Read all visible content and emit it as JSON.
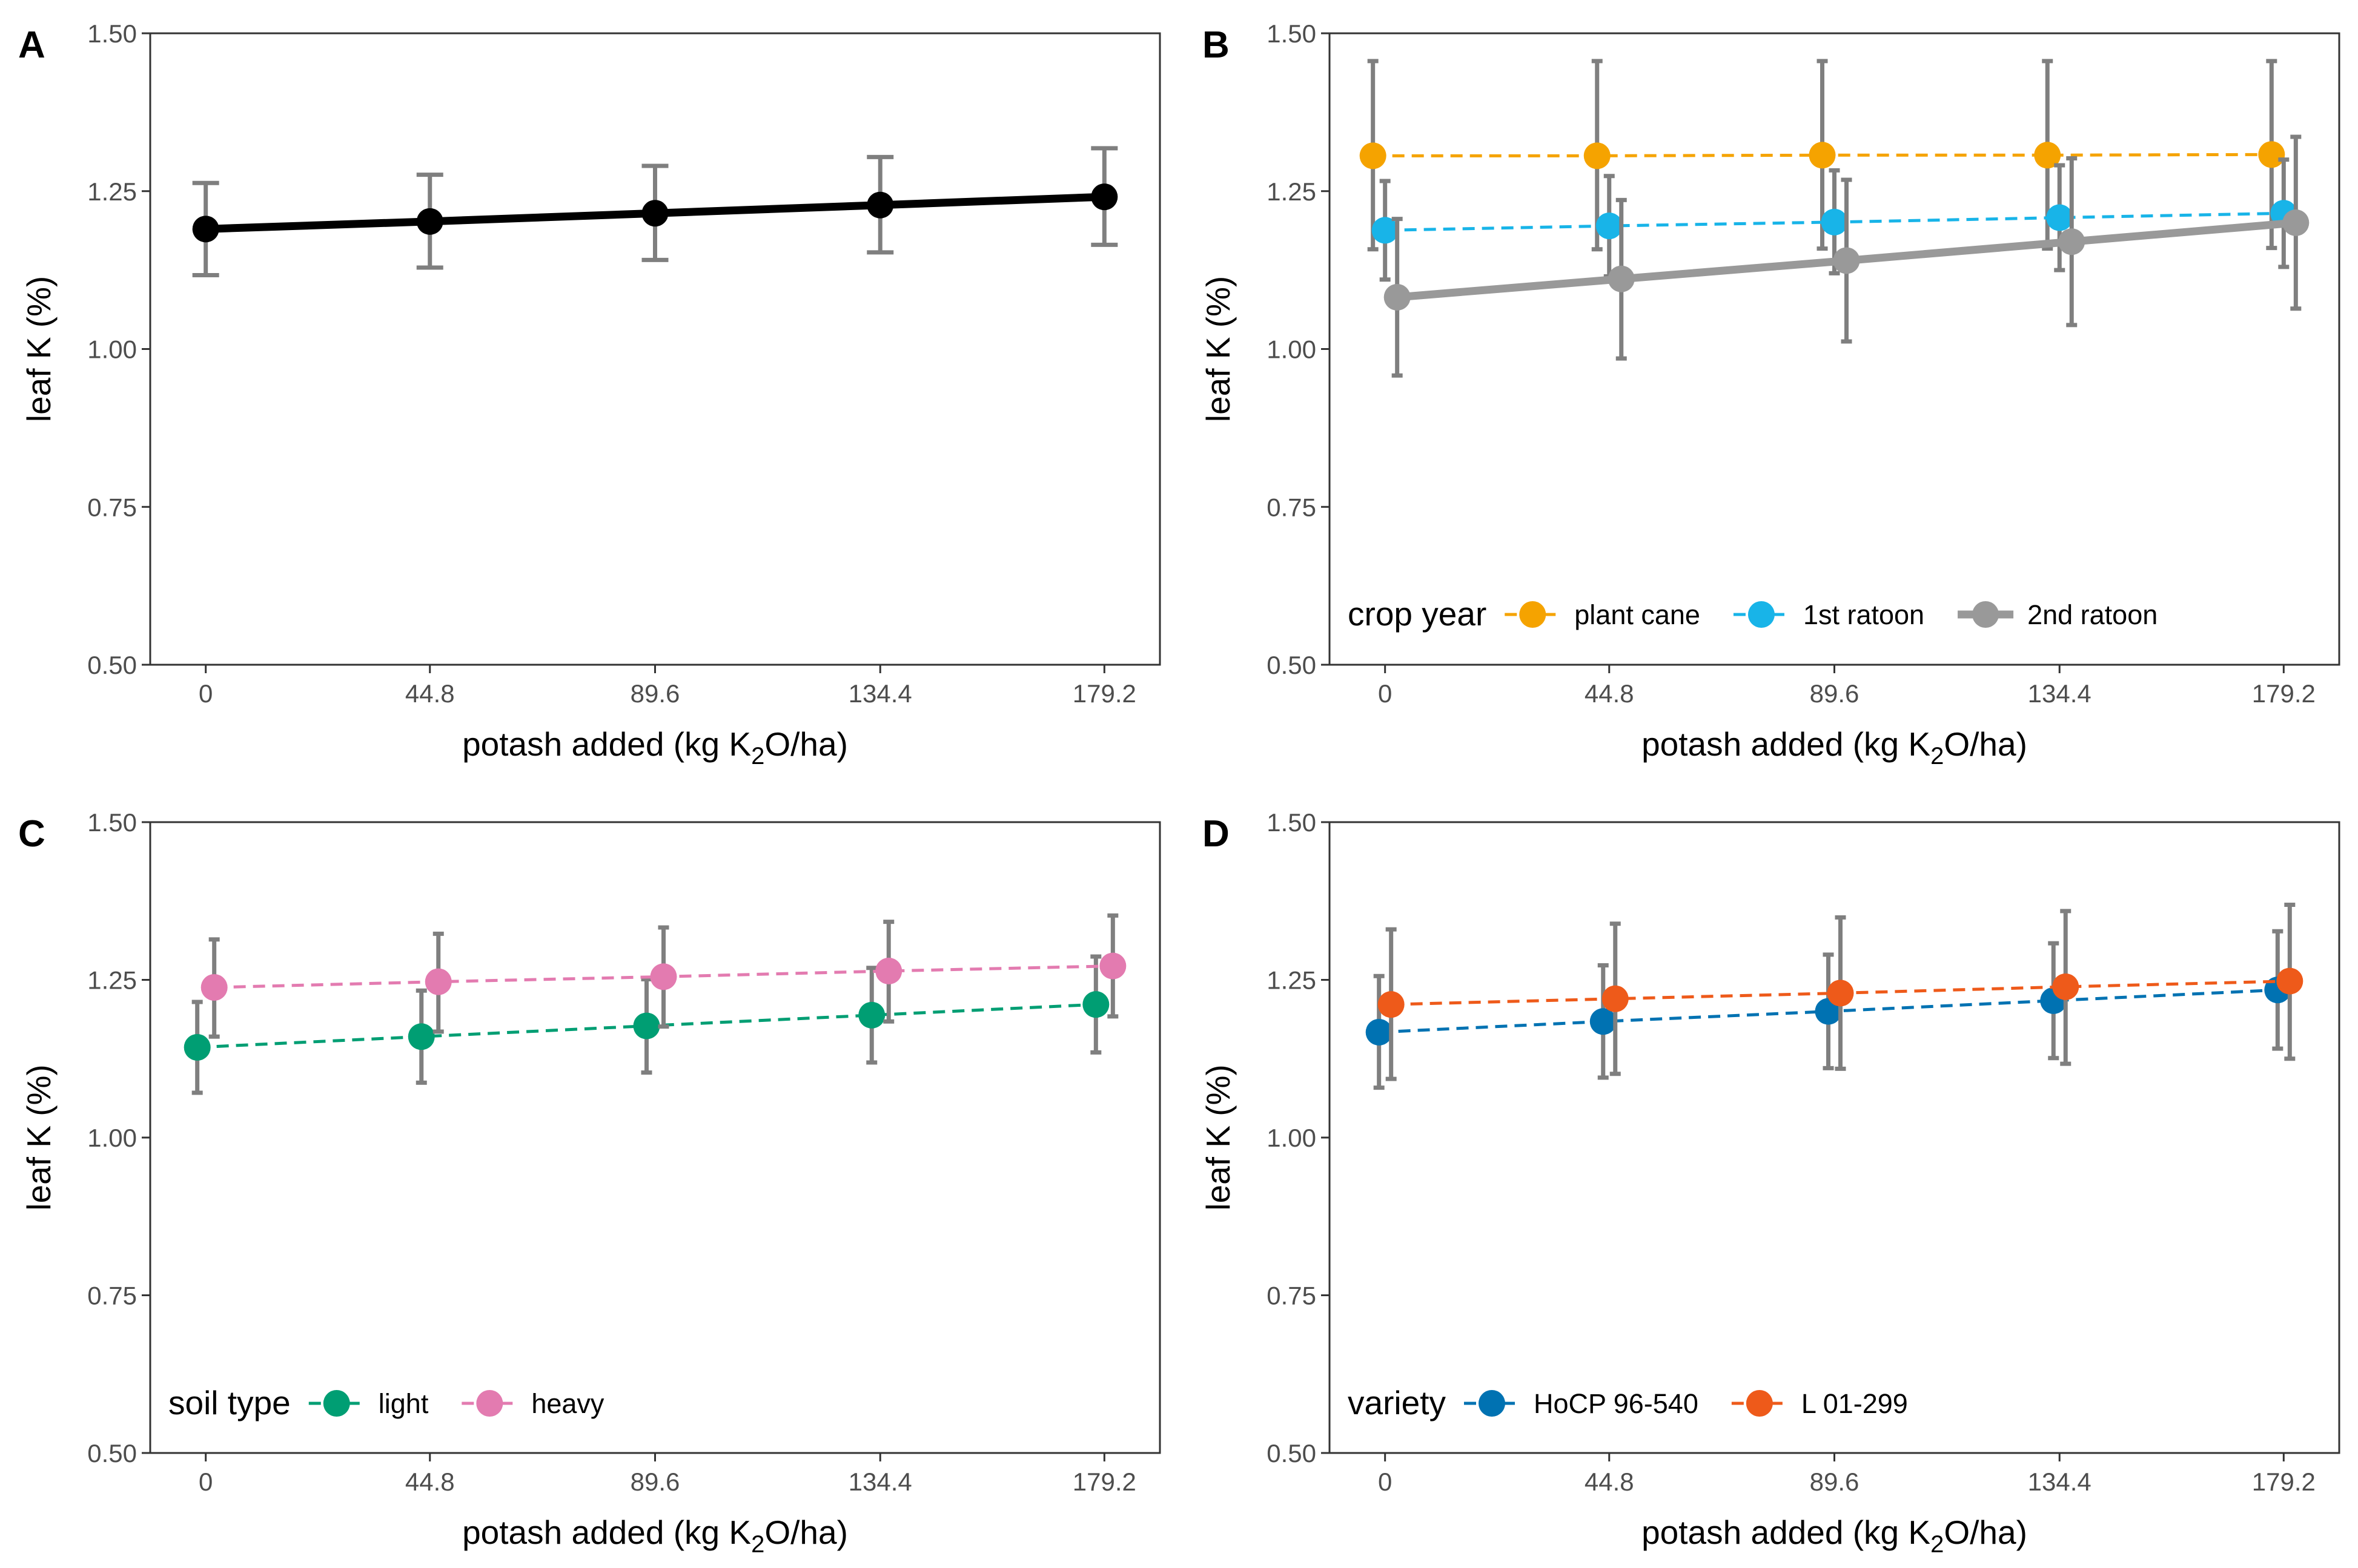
{
  "chart_data": [
    {
      "panel": "A",
      "type": "line",
      "xlabel_pre": "potash added (kg K",
      "xlabel_sub": "2",
      "xlabel_post": "O/ha)",
      "ylabel": "leaf K (%)",
      "categories": [
        "0",
        "44.8",
        "89.6",
        "134.4",
        "179.2"
      ],
      "yticks": [
        "0.50",
        "0.75",
        "1.00",
        "1.25",
        "1.50"
      ],
      "ylim": [
        0.5,
        1.5
      ],
      "legend_title": "",
      "series": [
        {
          "name": "",
          "color": "#000000",
          "dashed": false,
          "thick": true,
          "values": [
            1.19,
            1.202,
            1.215,
            1.228,
            1.241
          ],
          "lower": [
            1.117,
            1.129,
            1.141,
            1.153,
            1.165
          ],
          "upper": [
            1.263,
            1.276,
            1.29,
            1.304,
            1.318
          ]
        }
      ]
    },
    {
      "panel": "B",
      "type": "line",
      "xlabel_pre": "potash added (kg K",
      "xlabel_sub": "2",
      "xlabel_post": "O/ha)",
      "ylabel": "leaf K (%)",
      "categories": [
        "0",
        "44.8",
        "89.6",
        "134.4",
        "179.2"
      ],
      "yticks": [
        "0.50",
        "0.75",
        "1.00",
        "1.25",
        "1.50"
      ],
      "ylim": [
        0.5,
        1.5
      ],
      "legend_title": "crop year",
      "series": [
        {
          "name": "plant cane",
          "color": "#F5A300",
          "dashed": true,
          "thick": false,
          "values": [
            1.306,
            1.306,
            1.307,
            1.307,
            1.308
          ],
          "lower": [
            1.158,
            1.158,
            1.159,
            1.159,
            1.16
          ],
          "upper": [
            1.456,
            1.456,
            1.456,
            1.456,
            1.456
          ]
        },
        {
          "name": "1st ratoon",
          "color": "#18B4E8",
          "dashed": true,
          "thick": false,
          "values": [
            1.188,
            1.195,
            1.201,
            1.208,
            1.215
          ],
          "lower": [
            1.11,
            1.115,
            1.12,
            1.125,
            1.13
          ],
          "upper": [
            1.266,
            1.274,
            1.283,
            1.291,
            1.3
          ]
        },
        {
          "name": "2nd ratoon",
          "color": "#999999",
          "dashed": false,
          "thick": true,
          "values": [
            1.082,
            1.111,
            1.14,
            1.17,
            1.2
          ],
          "lower": [
            0.958,
            0.985,
            1.012,
            1.038,
            1.064
          ],
          "upper": [
            1.206,
            1.236,
            1.268,
            1.302,
            1.336
          ]
        }
      ]
    },
    {
      "panel": "C",
      "type": "line",
      "xlabel_pre": "potash added (kg K",
      "xlabel_sub": "2",
      "xlabel_post": "O/ha)",
      "ylabel": "leaf K (%)",
      "categories": [
        "0",
        "44.8",
        "89.6",
        "134.4",
        "179.2"
      ],
      "yticks": [
        "0.50",
        "0.75",
        "1.00",
        "1.25",
        "1.50"
      ],
      "ylim": [
        0.5,
        1.5
      ],
      "legend_title": "soil type",
      "series": [
        {
          "name": "light",
          "color": "#009E73",
          "dashed": true,
          "thick": false,
          "values": [
            1.143,
            1.16,
            1.177,
            1.194,
            1.211
          ],
          "lower": [
            1.071,
            1.087,
            1.103,
            1.119,
            1.135
          ],
          "upper": [
            1.215,
            1.233,
            1.251,
            1.269,
            1.287
          ]
        },
        {
          "name": "heavy",
          "color": "#E37BB0",
          "dashed": true,
          "thick": false,
          "values": [
            1.238,
            1.247,
            1.255,
            1.264,
            1.272
          ],
          "lower": [
            1.16,
            1.168,
            1.176,
            1.184,
            1.192
          ],
          "upper": [
            1.314,
            1.323,
            1.333,
            1.342,
            1.352
          ]
        }
      ]
    },
    {
      "panel": "D",
      "type": "line",
      "xlabel_pre": "potash added (kg K",
      "xlabel_sub": "2",
      "xlabel_post": "O/ha)",
      "ylabel": "leaf K (%)",
      "categories": [
        "0",
        "44.8",
        "89.6",
        "134.4",
        "179.2"
      ],
      "yticks": [
        "0.50",
        "0.75",
        "1.00",
        "1.25",
        "1.50"
      ],
      "ylim": [
        0.5,
        1.5
      ],
      "legend_title": "variety",
      "series": [
        {
          "name": "HoCP 96-540",
          "color": "#0072B2",
          "dashed": true,
          "thick": false,
          "values": [
            1.167,
            1.184,
            1.2,
            1.217,
            1.234
          ],
          "lower": [
            1.079,
            1.095,
            1.11,
            1.126,
            1.141
          ],
          "upper": [
            1.256,
            1.273,
            1.29,
            1.308,
            1.327
          ]
        },
        {
          "name": "L 01-299",
          "color": "#EE5A1A",
          "dashed": true,
          "thick": false,
          "values": [
            1.211,
            1.22,
            1.229,
            1.239,
            1.248
          ],
          "lower": [
            1.093,
            1.101,
            1.109,
            1.117,
            1.125
          ],
          "upper": [
            1.33,
            1.339,
            1.349,
            1.359,
            1.369
          ]
        }
      ]
    }
  ]
}
